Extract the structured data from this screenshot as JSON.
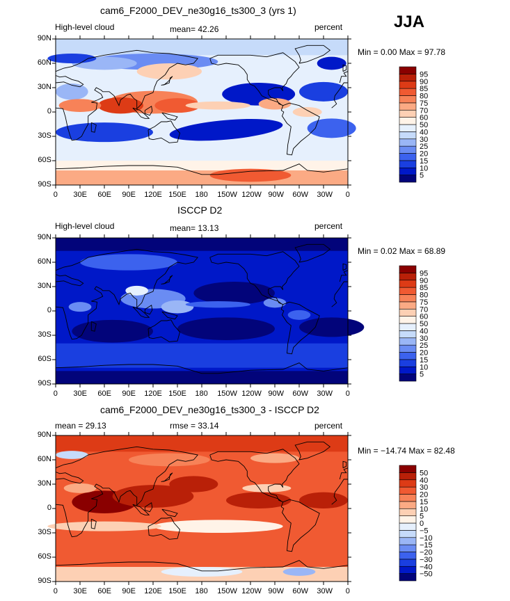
{
  "season": "JJA",
  "axes": {
    "lat_ticks": [
      "90N",
      "60N",
      "30N",
      "0",
      "30S",
      "60S",
      "90S"
    ],
    "lon_ticks": [
      "0",
      "30E",
      "60E",
      "90E",
      "120E",
      "150E",
      "180",
      "150W",
      "120W",
      "90W",
      "60W",
      "30W",
      "0"
    ]
  },
  "colors": {
    "abs_scale": [
      "#02047a",
      "#0018c8",
      "#1a3fe0",
      "#3c62ee",
      "#6a8cf3",
      "#9ab6f6",
      "#c6dbfa",
      "#e6f0fd",
      "#fff3e8",
      "#fdd0b4",
      "#fbaa84",
      "#f78258",
      "#f05a32",
      "#dd3b16",
      "#b92008",
      "#8a0000"
    ],
    "diff_scale": [
      "#02047a",
      "#0018c8",
      "#1a3fe0",
      "#3c62ee",
      "#6a8cf3",
      "#9ab6f6",
      "#c6dbfa",
      "#e6f0fd",
      "#fff3e8",
      "#fdd0b4",
      "#fbaa84",
      "#f78258",
      "#f05a32",
      "#dd3b16",
      "#b92008",
      "#8a0000"
    ],
    "coast": "#000000"
  },
  "panels": [
    {
      "id": "model",
      "title": "cam6_F2000_DEV_ne30g16_ts300_3 (yrs 1)",
      "left_label": "High-level cloud",
      "center_label": "mean=  42.26",
      "right_label": "percent",
      "minmax": "Min =    0.00 Max =   97.78",
      "colorbar_labels": [
        "5",
        "10",
        "15",
        "20",
        "25",
        "30",
        "40",
        "50",
        "60",
        "70",
        "75",
        "80",
        "85",
        "90",
        "95"
      ]
    },
    {
      "id": "obs",
      "title": "ISCCP D2",
      "left_label": "High-level cloud",
      "center_label": "mean=  13.13",
      "right_label": "percent",
      "minmax": "Min =    0.02 Max =   68.89",
      "colorbar_labels": [
        "5",
        "10",
        "15",
        "20",
        "25",
        "30",
        "40",
        "50",
        "60",
        "70",
        "75",
        "80",
        "85",
        "90",
        "95"
      ]
    },
    {
      "id": "diff",
      "title": "cam6_F2000_DEV_ne30g16_ts300_3 - ISCCP D2",
      "left_label": "mean =  29.13",
      "center_label": "rmse =  33.14",
      "right_label": "percent",
      "minmax": "Min = −14.74 Max =   82.48",
      "colorbar_labels": [
        "−50",
        "−40",
        "−30",
        "−20",
        "−15",
        "−10",
        "−5",
        "0",
        "5",
        "10",
        "15",
        "20",
        "30",
        "40",
        "50"
      ]
    }
  ]
}
